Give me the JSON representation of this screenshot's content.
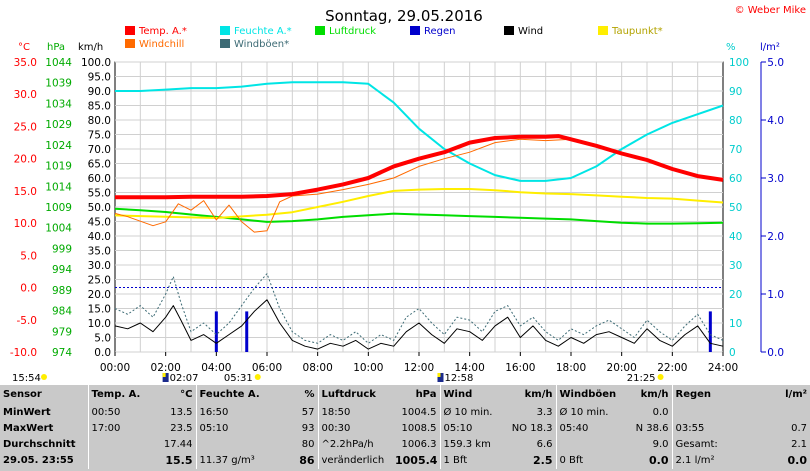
{
  "title": "Sonntag, 29.05.2016",
  "copyright": "© Weber Mike",
  "legend": [
    {
      "name": "Temp. A.*",
      "color": "#ff0000"
    },
    {
      "name": "Feuchte A.*",
      "color": "#00e5e5"
    },
    {
      "name": "Luftdruck",
      "color": "#00dd00"
    },
    {
      "name": "Regen",
      "color": "#0000cc"
    },
    {
      "name": "Wind",
      "color": "#000000"
    },
    {
      "name": "Taupunkt*",
      "color": "#ffee00"
    },
    {
      "name": "Windchill",
      "color": "#ff6a00"
    },
    {
      "name": "Windböen*",
      "color": "#3d6b75"
    }
  ],
  "axis_units": {
    "temp": "°C",
    "pressure": "hPa",
    "wind": "km/h",
    "humidity": "%",
    "rain": "l/m²"
  },
  "markers": {
    "sunrise": "05:31",
    "sunset": "21:25",
    "left_time": "15:54",
    "moon1": "02:07",
    "moon2": "12:58"
  },
  "chart_data": {
    "type": "line",
    "x_ticks": [
      "00:00",
      "02:00",
      "04:00",
      "06:00",
      "08:00",
      "10:00",
      "12:00",
      "14:00",
      "16:00",
      "18:00",
      "20:00",
      "22:00",
      "24:00"
    ],
    "axes": {
      "temp": {
        "min": -10.0,
        "max": 35.0,
        "ticks": [
          "35.0",
          "30.0",
          "25.0",
          "20.0",
          "15.0",
          "10.0",
          "5.0",
          "0.0",
          "-5.0",
          "-10.0"
        ]
      },
      "pressure": {
        "min": 974,
        "max": 1044,
        "ticks": [
          "1044",
          "1039",
          "1034",
          "1029",
          "1024",
          "1019",
          "1014",
          "1009",
          "1004",
          "999",
          "994",
          "989",
          "984",
          "979",
          "974"
        ]
      },
      "wind": {
        "min": 0.0,
        "max": 100.0,
        "ticks": [
          "100.0",
          "95.0",
          "90.0",
          "85.0",
          "80.0",
          "75.0",
          "70.0",
          "65.0",
          "60.0",
          "55.0",
          "50.0",
          "45.0",
          "40.0",
          "35.0",
          "30.0",
          "25.0",
          "20.0",
          "15.0",
          "10.0",
          "5.0",
          "0.0"
        ]
      },
      "humidity": {
        "min": 0,
        "max": 100,
        "ticks": [
          "100",
          "90",
          "80",
          "70",
          "60",
          "50",
          "40",
          "30",
          "20",
          "10",
          "0"
        ]
      },
      "rain": {
        "min": 0.0,
        "max": 5.0,
        "ticks": [
          "5.0",
          "4.0",
          "3.0",
          "2.0",
          "1.0",
          "0.0"
        ]
      }
    },
    "series": [
      {
        "name": "Temp. A.*",
        "axis": "temp",
        "color": "#ff0000",
        "width": 4,
        "x": [
          0,
          1,
          2,
          3,
          4,
          5,
          6,
          7,
          8,
          9,
          10,
          11,
          12,
          13,
          14,
          15,
          16,
          17,
          17.5,
          18,
          19,
          20,
          21,
          22,
          23,
          24
        ],
        "y": [
          14.0,
          14.0,
          14.0,
          14.1,
          14.1,
          14.1,
          14.2,
          14.5,
          15.2,
          16.0,
          17.0,
          18.8,
          20.0,
          21.0,
          22.5,
          23.2,
          23.4,
          23.4,
          23.5,
          23.0,
          22.0,
          20.8,
          19.8,
          18.4,
          17.3,
          16.7
        ]
      },
      {
        "name": "Feuchte A.*",
        "axis": "humidity",
        "color": "#00e5e5",
        "width": 2,
        "x": [
          0,
          1,
          2,
          3,
          4,
          5,
          6,
          7,
          8,
          9,
          10,
          11,
          12,
          13,
          14,
          15,
          16,
          17,
          18,
          19,
          20,
          21,
          22,
          23,
          24
        ],
        "y": [
          90,
          90,
          90.5,
          91,
          91,
          91.5,
          92.5,
          93,
          93,
          93,
          92.5,
          86,
          77,
          70,
          65,
          61,
          59,
          59,
          60,
          64,
          70,
          75,
          79,
          82,
          85
        ]
      },
      {
        "name": "Luftdruck",
        "axis": "pressure",
        "color": "#00dd00",
        "width": 2,
        "x": [
          0,
          1,
          2,
          3,
          4,
          5,
          6,
          7,
          8,
          9,
          10,
          11,
          12,
          13,
          14,
          15,
          16,
          17,
          18,
          19,
          20,
          21,
          22,
          23,
          24
        ],
        "y": [
          1008.6,
          1008.2,
          1007.8,
          1007.2,
          1006.6,
          1006.0,
          1005.4,
          1005.6,
          1006.0,
          1006.6,
          1007.0,
          1007.4,
          1007.2,
          1007.0,
          1006.8,
          1006.6,
          1006.4,
          1006.2,
          1006.0,
          1005.6,
          1005.2,
          1005.0,
          1005.0,
          1005.1,
          1005.2
        ]
      },
      {
        "name": "Taupunkt*",
        "axis": "temp",
        "color": "#ffee00",
        "width": 2,
        "x": [
          0,
          2,
          4,
          6,
          7,
          8,
          9,
          10,
          11,
          12,
          13,
          14,
          15,
          16,
          17,
          18,
          19,
          20,
          21,
          22,
          23,
          24
        ],
        "y": [
          11.2,
          11.0,
          10.8,
          11.3,
          11.7,
          12.5,
          13.3,
          14.2,
          15.0,
          15.2,
          15.3,
          15.3,
          15.1,
          14.8,
          14.6,
          14.5,
          14.3,
          14.1,
          13.9,
          13.8,
          13.5,
          13.2
        ]
      },
      {
        "name": "Windchill",
        "axis": "temp",
        "color": "#ff6a00",
        "width": 1,
        "x": [
          0,
          0.5,
          1,
          1.5,
          2,
          2.5,
          3,
          3.5,
          4,
          4.5,
          5,
          5.5,
          6,
          6.5,
          7,
          8,
          9,
          10,
          11,
          12,
          13,
          14,
          15,
          16,
          17,
          18,
          19,
          20,
          21,
          22,
          23,
          24
        ],
        "y": [
          11.5,
          11.0,
          10.3,
          9.6,
          10.2,
          13.0,
          12.0,
          13.5,
          10.5,
          12.8,
          10.2,
          8.6,
          8.8,
          13.3,
          14.2,
          14.5,
          15.2,
          16.0,
          17.0,
          18.8,
          20.0,
          21.0,
          22.5,
          23.0,
          22.8,
          23.0,
          22.0,
          20.8,
          19.8,
          18.4,
          17.3,
          16.7
        ]
      },
      {
        "name": "Wind",
        "axis": "wind",
        "color": "#000000",
        "width": 1,
        "x": [
          0,
          0.5,
          1,
          1.5,
          2,
          2.3,
          2.6,
          3,
          3.5,
          4,
          4.5,
          5,
          5.5,
          6,
          6.5,
          7,
          7.5,
          8,
          8.5,
          9,
          9.5,
          10,
          10.5,
          11,
          11.5,
          12,
          12.5,
          13,
          13.5,
          14,
          14.5,
          15,
          15.5,
          16,
          16.5,
          17,
          17.5,
          18,
          18.5,
          19,
          19.5,
          20,
          20.5,
          21,
          21.5,
          22,
          22.5,
          23,
          23.5,
          24
        ],
        "y": [
          9,
          8,
          10,
          7,
          12,
          16,
          11,
          4,
          6,
          3,
          6,
          9,
          14,
          18,
          10,
          4,
          2,
          1,
          3,
          2,
          4,
          1,
          3,
          2,
          7,
          10,
          6,
          3,
          8,
          7,
          4,
          9,
          12,
          5,
          9,
          4,
          2,
          5,
          3,
          6,
          7,
          5,
          3,
          8,
          4,
          2,
          6,
          9,
          3,
          2
        ]
      },
      {
        "name": "Windböen*",
        "axis": "wind",
        "color": "#3d6b75",
        "width": 1,
        "dash": true,
        "x": [
          0,
          0.5,
          1,
          1.5,
          2,
          2.3,
          2.6,
          3,
          3.5,
          4,
          4.5,
          5,
          5.5,
          6,
          6.5,
          7,
          7.5,
          8,
          8.5,
          9,
          9.5,
          10,
          10.5,
          11,
          11.5,
          12,
          12.5,
          13,
          13.5,
          14,
          14.5,
          15,
          15.5,
          16,
          16.5,
          17,
          17.5,
          18,
          18.5,
          19,
          19.5,
          20,
          20.5,
          21,
          21.5,
          22,
          22.5,
          23,
          23.5,
          24
        ],
        "y": [
          15,
          13,
          16,
          12,
          20,
          26,
          17,
          7,
          10,
          6,
          10,
          16,
          22,
          27,
          15,
          7,
          4,
          3,
          6,
          4,
          7,
          3,
          6,
          4,
          12,
          15,
          10,
          6,
          12,
          11,
          7,
          14,
          16,
          9,
          12,
          7,
          4,
          8,
          6,
          9,
          11,
          8,
          5,
          11,
          7,
          4,
          9,
          13,
          6,
          4
        ]
      }
    ],
    "rain_bars": [
      {
        "x": 4.0,
        "y": 0.7
      },
      {
        "x": 5.2,
        "y": 0.7
      },
      {
        "x": 23.5,
        "y": 0.7
      }
    ],
    "reference_lines": [
      {
        "axis": "temp",
        "y": 0.0,
        "color": "#0000cc",
        "dash": true
      }
    ]
  },
  "stats": {
    "headers": [
      "Sensor",
      "Temp. A.",
      "°C",
      "Feuchte A.",
      "%",
      "Luftdruck",
      "hPa",
      "Wind",
      "km/h",
      "Windböen",
      "km/h",
      "Regen",
      "l/m²"
    ],
    "rows": [
      {
        "label": "MinWert",
        "cells": [
          "00:50",
          "13.5",
          "16:50",
          "57",
          "18:50",
          "1004.5",
          "Ø 10 min.",
          "3.3",
          "Ø 10 min.",
          "0.0",
          "",
          ""
        ]
      },
      {
        "label": "MaxWert",
        "cells": [
          "17:00",
          "23.5",
          "05:10",
          "93",
          "00:30",
          "1008.5",
          "05:10",
          "NO 18.3",
          "05:40",
          "N 38.6",
          "03:55",
          "0.7"
        ]
      },
      {
        "label": "Durchschnitt",
        "cells": [
          "",
          "17.44",
          "",
          "80",
          "^2.2hPa/h",
          "1006.3",
          "159.3 km",
          "6.6",
          "",
          "9.0",
          "Gesamt:",
          "2.1"
        ]
      },
      {
        "label": "29.05. 23:55",
        "cells": [
          "",
          "15.5",
          "11.37 g/m³",
          "86",
          "veränderlich",
          "1005.4",
          "1 Bft",
          "2.5",
          "0 Bft",
          "0.0",
          "2.1 l/m²",
          "0.0"
        ]
      }
    ]
  }
}
